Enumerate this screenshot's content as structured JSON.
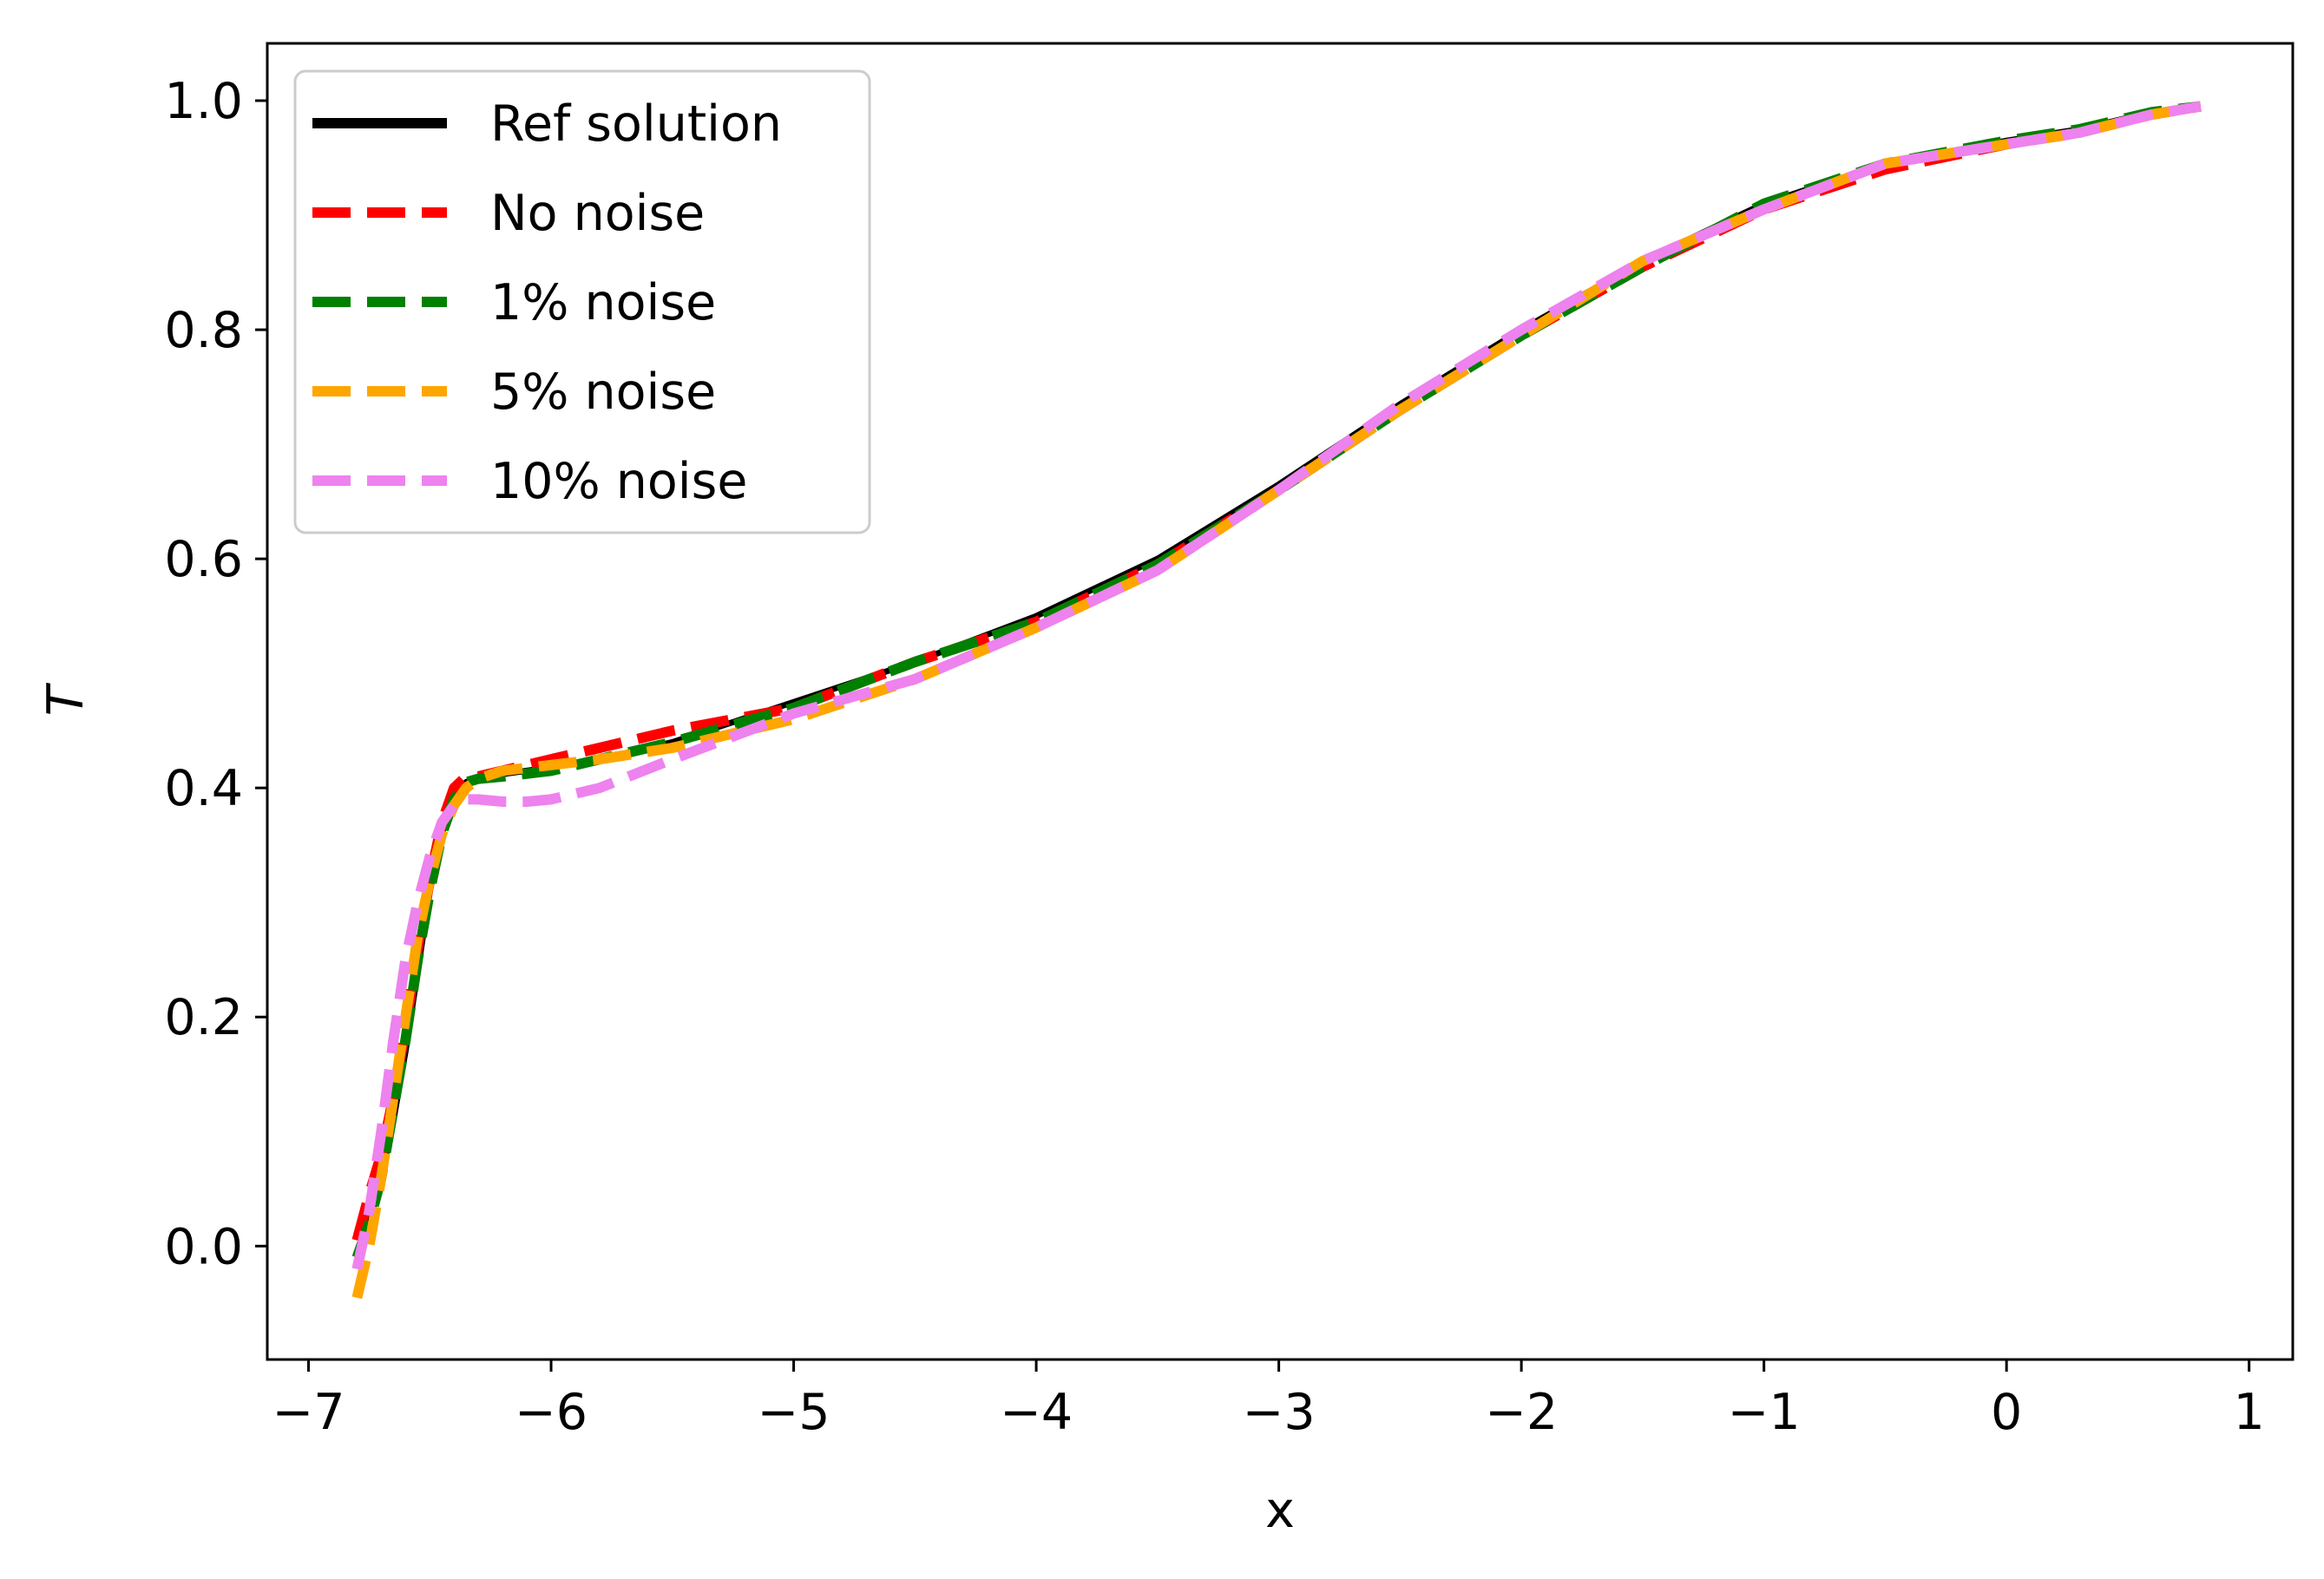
{
  "chart_data": {
    "type": "line",
    "title": "",
    "xlabel": "x",
    "ylabel": "T",
    "xlim": [
      -7.17,
      1.18
    ],
    "ylim": [
      -0.099,
      1.05
    ],
    "xticks": [
      -7,
      -6,
      -5,
      -4,
      -3,
      -2,
      -1,
      0,
      1
    ],
    "xtick_labels": [
      "−7",
      "−6",
      "−5",
      "−4",
      "−3",
      "−2",
      "−1",
      "0",
      "1"
    ],
    "yticks": [
      0.0,
      0.2,
      0.4,
      0.6,
      0.8,
      1.0
    ],
    "ytick_labels": [
      "0.0",
      "0.2",
      "0.4",
      "0.6",
      "0.8",
      "1.0"
    ],
    "grid": false,
    "legend_position": "upper-left",
    "series": [
      {
        "name": "Ref solution",
        "color": "#000000",
        "style": "solid",
        "x": [
          -6.8,
          -6.75,
          -6.7,
          -6.65,
          -6.6,
          -6.55,
          -6.5,
          -6.45,
          -6.4,
          -6.35,
          -6.3,
          -6.2,
          -6.0,
          -5.8,
          -5.5,
          -5.0,
          -4.5,
          -4.0,
          -3.5,
          -3.0,
          -2.5,
          -2.0,
          -1.5,
          -1.0,
          -0.5,
          0.0,
          0.3,
          0.6,
          0.8
        ],
        "y": [
          -0.005,
          0.02,
          0.06,
          0.11,
          0.17,
          0.24,
          0.31,
          0.36,
          0.395,
          0.405,
          0.41,
          0.412,
          0.418,
          0.425,
          0.44,
          0.475,
          0.51,
          0.55,
          0.6,
          0.665,
          0.735,
          0.8,
          0.86,
          0.91,
          0.945,
          0.965,
          0.975,
          0.99,
          0.995
        ]
      },
      {
        "name": "No noise",
        "color": "#ff0000",
        "style": "dashed",
        "x": [
          -6.8,
          -6.75,
          -6.7,
          -6.65,
          -6.6,
          -6.55,
          -6.5,
          -6.45,
          -6.4,
          -6.35,
          -6.3,
          -6.2,
          -6.0,
          -5.8,
          -5.5,
          -5.0,
          -4.5,
          -4.0,
          -3.5,
          -3.0,
          -2.5,
          -2.0,
          -1.5,
          -1.0,
          -0.5,
          0.0,
          0.3,
          0.6,
          0.8
        ],
        "y": [
          0.005,
          0.045,
          0.08,
          0.13,
          0.19,
          0.26,
          0.32,
          0.37,
          0.4,
          0.41,
          0.41,
          0.415,
          0.425,
          0.435,
          0.45,
          0.47,
          0.51,
          0.545,
          0.595,
          0.66,
          0.73,
          0.795,
          0.855,
          0.905,
          0.94,
          0.962,
          0.972,
          0.988,
          0.995
        ]
      },
      {
        "name": "1% noise",
        "color": "#008000",
        "style": "dashed",
        "x": [
          -6.8,
          -6.75,
          -6.7,
          -6.65,
          -6.6,
          -6.55,
          -6.5,
          -6.45,
          -6.4,
          -6.35,
          -6.3,
          -6.2,
          -6.0,
          -5.8,
          -5.5,
          -5.0,
          -4.5,
          -4.0,
          -3.5,
          -3.0,
          -2.5,
          -2.0,
          -1.5,
          -1.0,
          -0.5,
          0.0,
          0.3,
          0.6,
          0.8
        ],
        "y": [
          -0.01,
          0.02,
          0.06,
          0.12,
          0.18,
          0.25,
          0.31,
          0.36,
          0.39,
          0.405,
          0.408,
          0.41,
          0.415,
          0.425,
          0.44,
          0.47,
          0.51,
          0.545,
          0.595,
          0.66,
          0.73,
          0.795,
          0.855,
          0.91,
          0.945,
          0.965,
          0.975,
          0.99,
          0.995
        ]
      },
      {
        "name": "5% noise",
        "color": "#ffa500",
        "style": "dashed",
        "x": [
          -6.8,
          -6.75,
          -6.7,
          -6.65,
          -6.6,
          -6.55,
          -6.5,
          -6.45,
          -6.4,
          -6.35,
          -6.3,
          -6.2,
          -6.0,
          -5.8,
          -5.5,
          -5.0,
          -4.5,
          -4.0,
          -3.5,
          -3.0,
          -2.5,
          -2.0,
          -1.5,
          -1.0,
          -0.5,
          0.0,
          0.3,
          0.6,
          0.8
        ],
        "y": [
          -0.045,
          0.0,
          0.06,
          0.13,
          0.2,
          0.27,
          0.32,
          0.36,
          0.385,
          0.4,
          0.408,
          0.415,
          0.42,
          0.425,
          0.435,
          0.46,
          0.495,
          0.54,
          0.59,
          0.66,
          0.73,
          0.795,
          0.86,
          0.905,
          0.945,
          0.962,
          0.972,
          0.988,
          0.995
        ]
      },
      {
        "name": "10% noise",
        "color": "#ee82ee",
        "style": "dashed",
        "x": [
          -6.8,
          -6.75,
          -6.7,
          -6.65,
          -6.6,
          -6.55,
          -6.5,
          -6.45,
          -6.4,
          -6.35,
          -6.3,
          -6.2,
          -6.1,
          -6.0,
          -5.8,
          -5.5,
          -5.0,
          -4.5,
          -4.0,
          -3.5,
          -3.0,
          -2.5,
          -2.0,
          -1.5,
          -1.0,
          -0.5,
          0.0,
          0.3,
          0.6,
          0.8
        ],
        "y": [
          -0.02,
          0.03,
          0.1,
          0.18,
          0.25,
          0.3,
          0.34,
          0.37,
          0.385,
          0.39,
          0.39,
          0.388,
          0.388,
          0.39,
          0.4,
          0.425,
          0.465,
          0.495,
          0.54,
          0.59,
          0.66,
          0.735,
          0.8,
          0.86,
          0.905,
          0.945,
          0.962,
          0.972,
          0.988,
          0.995
        ]
      }
    ]
  }
}
